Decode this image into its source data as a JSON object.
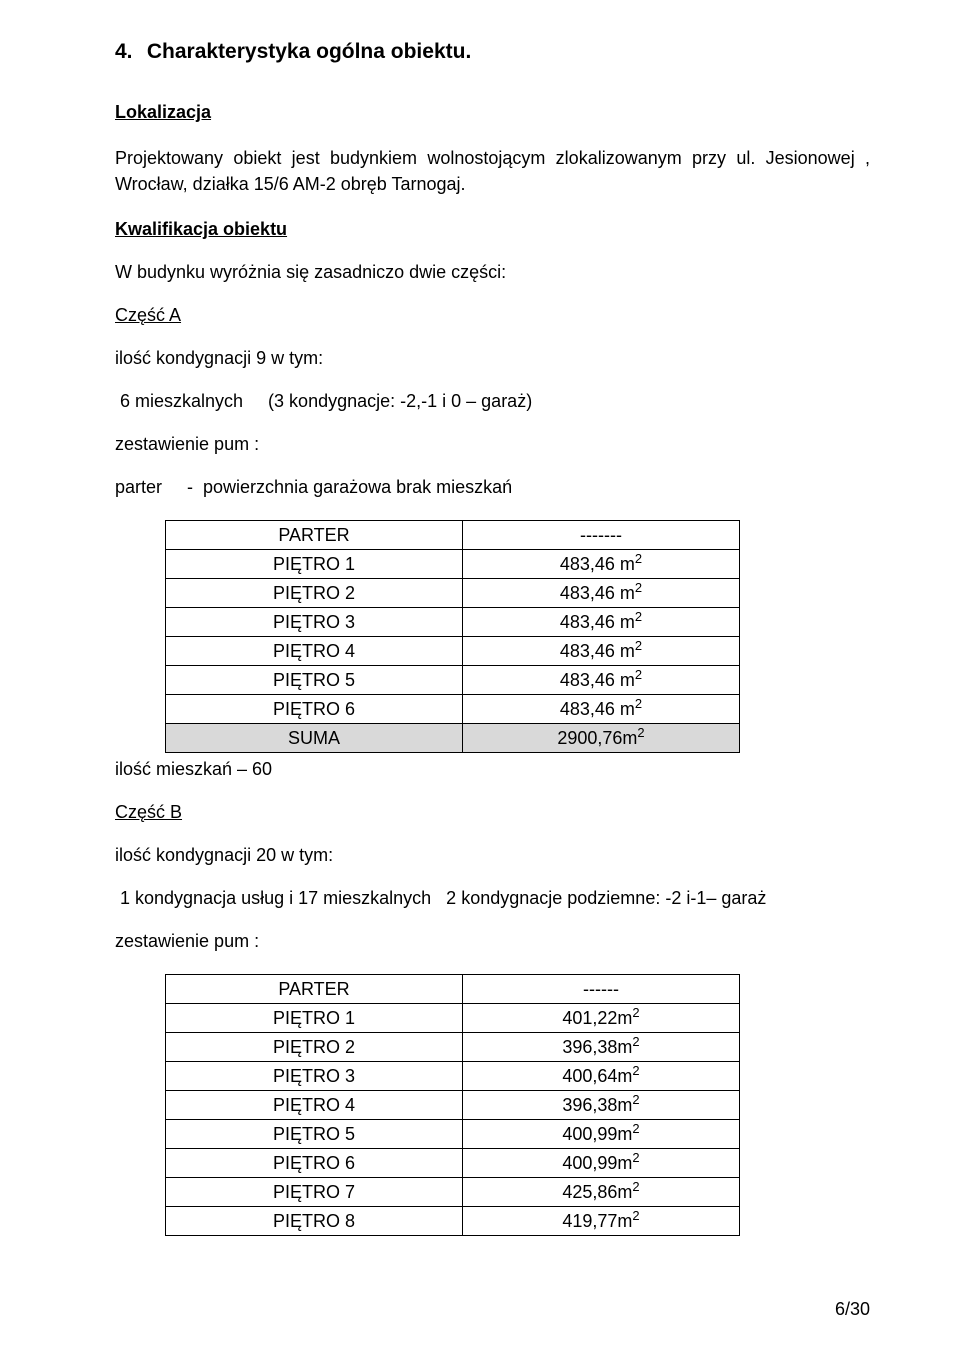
{
  "page": {
    "number": "6/30",
    "background_color": "#ffffff",
    "text_color": "#000000",
    "sum_row_bg": "#d9d9d9",
    "font_family": "Arial",
    "body_fontsize_pt": 14
  },
  "heading": {
    "number": "4.",
    "text": "Charakterystyka ogólna obiektu."
  },
  "lokalizacja": {
    "title": "Lokalizacja",
    "para": "Projektowany obiekt jest budynkiem wolnostojącym zlokalizowanym przy ul. Jesionowej , Wrocław, działka 15/6 AM-2 obręb Tarnogaj."
  },
  "kwalifikacja": {
    "title": "Kwalifikacja obiektu",
    "intro": "W budynku wyróżnia się zasadniczo dwie części:"
  },
  "partA": {
    "title": "Część A",
    "kondygnacje": "ilość kondygnacji 9 w tym:",
    "mieszkalne": " 6 mieszkalnych     (3 kondygnacje: -2,-1 i 0 – garaż)",
    "zestawienie": "zestawienie pum :",
    "parter_note": "parter     -  powierzchnia garażowa brak mieszkań",
    "table": {
      "rows": [
        {
          "label": "PARTER",
          "value": "-------",
          "unit": ""
        },
        {
          "label": "PIĘTRO 1",
          "value": "483,46 m",
          "unit": "2"
        },
        {
          "label": "PIĘTRO 2",
          "value": "483,46 m",
          "unit": "2"
        },
        {
          "label": "PIĘTRO 3",
          "value": "483,46 m",
          "unit": "2"
        },
        {
          "label": "PIĘTRO 4",
          "value": "483,46 m",
          "unit": "2"
        },
        {
          "label": "PIĘTRO 5",
          "value": "483,46 m",
          "unit": "2"
        },
        {
          "label": "PIĘTRO 6",
          "value": "483,46 m",
          "unit": "2"
        }
      ],
      "sum": {
        "label": "SUMA",
        "value": "2900,76m",
        "unit": "2"
      }
    },
    "ilosc_mieszkan": "ilość mieszkań  – 60"
  },
  "partB": {
    "title": "Część B",
    "kondygnacje": "ilość kondygnacji 20 w tym:",
    "mieszkalne": " 1 kondygnacja usług i 17 mieszkalnych   2 kondygnacje podziemne: -2 i-1– garaż",
    "zestawienie": "zestawienie pum :",
    "table": {
      "rows": [
        {
          "label": "PARTER",
          "value": "------",
          "unit": ""
        },
        {
          "label": "PIĘTRO 1",
          "value": "401,22m",
          "unit": "2"
        },
        {
          "label": "PIĘTRO 2",
          "value": "396,38m",
          "unit": "2"
        },
        {
          "label": "PIĘTRO 3",
          "value": "400,64m",
          "unit": "2"
        },
        {
          "label": "PIĘTRO 4",
          "value": "396,38m",
          "unit": "2"
        },
        {
          "label": "PIĘTRO 5",
          "value": "400,99m",
          "unit": "2"
        },
        {
          "label": "PIĘTRO 6",
          "value": "400,99m",
          "unit": "2"
        },
        {
          "label": "PIĘTRO 7",
          "value": "425,86m",
          "unit": "2"
        },
        {
          "label": "PIĘTRO 8",
          "value": "419,77m",
          "unit": "2"
        }
      ]
    }
  }
}
